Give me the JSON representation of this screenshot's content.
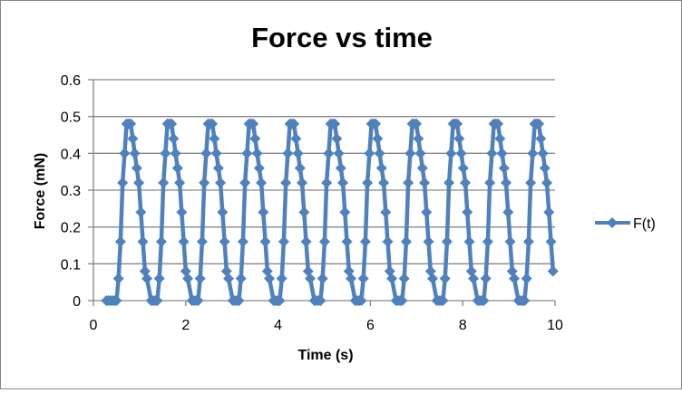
{
  "chart_data": {
    "type": "line",
    "title": "Force vs time",
    "xlabel": "Time (s)",
    "ylabel": "Force (mN)",
    "xlim": [
      0,
      10
    ],
    "ylim": [
      0,
      0.6
    ],
    "x_ticks": [
      "0",
      "2",
      "4",
      "6",
      "8",
      "10"
    ],
    "y_ticks": [
      "0",
      "0.1",
      "0.2",
      "0.3",
      "0.4",
      "0.5",
      "0.6"
    ],
    "grid": "horizontal major gridlines",
    "legend_position": "right",
    "marker": "diamond",
    "series": [
      {
        "name": "F(t)",
        "color": "#4F81BD",
        "pulse_period_s": 0.884,
        "first_sample_t": 0.28,
        "sample_step_s": 0.044,
        "pulse_template": [
          0,
          0,
          0,
          0,
          0,
          0,
          0.06,
          0.16,
          0.32,
          0.4,
          0.48,
          0.48,
          0.48,
          0.44,
          0.4,
          0.36,
          0.32,
          0.24,
          0.16,
          0.08,
          0.06
        ],
        "pulse_count": 11,
        "last_sample_value": 0.08,
        "approx_peak_times_s": [
          0.73,
          1.63,
          2.52,
          3.36,
          4.23,
          5.09,
          6.0,
          6.88,
          7.74,
          8.64,
          9.57
        ],
        "peak_value": 0.48
      }
    ]
  },
  "title": "Force vs time",
  "axes": {
    "x_label": "Time (s)",
    "y_label": "Force (mN)"
  },
  "legend": {
    "label": "F(t)"
  }
}
